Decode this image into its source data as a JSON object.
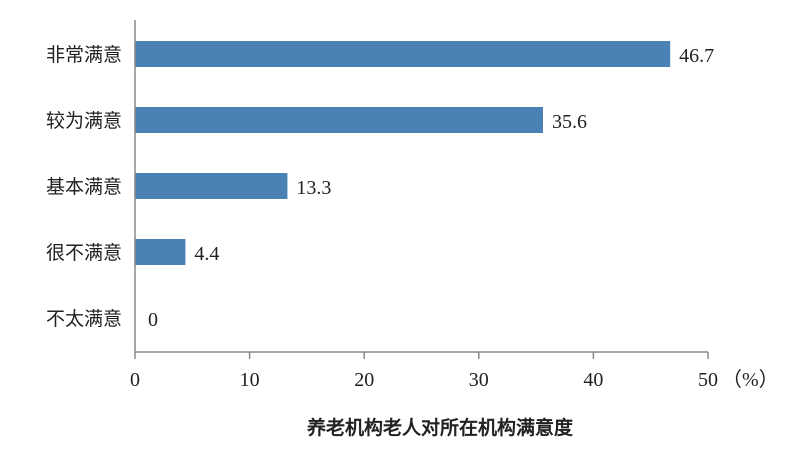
{
  "chart_data": {
    "type": "bar",
    "orientation": "horizontal",
    "title": "养老机构老人对所在机构满意度",
    "categories": [
      "非常满意",
      "较为满意",
      "基本满意",
      "很不满意",
      "不太满意"
    ],
    "values": [
      46.7,
      35.6,
      13.3,
      4.4,
      0
    ],
    "data_labels": [
      "46.7",
      "35.6",
      "13.3",
      "4.4",
      "0"
    ],
    "xlim": [
      0,
      50
    ],
    "xticks": [
      "0",
      "10",
      "20",
      "30",
      "40",
      "50"
    ],
    "xunit": "（%）",
    "grid": false,
    "bar_color": "#4a82b5",
    "axis_color": "#888888"
  }
}
